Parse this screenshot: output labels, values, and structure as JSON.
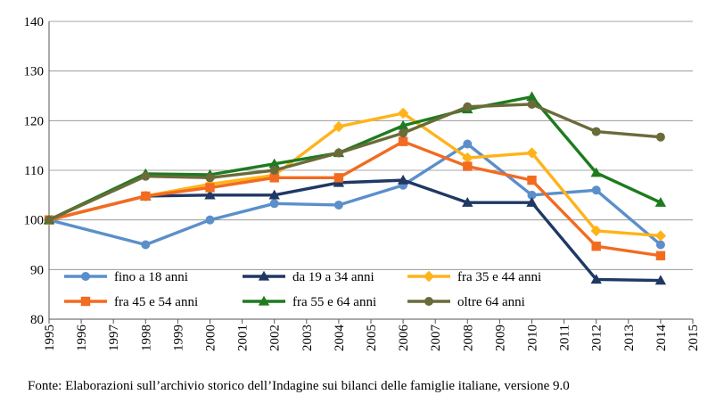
{
  "chart_data": {
    "type": "line",
    "title": "",
    "xlabel": "",
    "ylabel": "",
    "x": [
      1995,
      1998,
      2000,
      2002,
      2004,
      2006,
      2008,
      2010,
      2012,
      2014
    ],
    "xticks": [
      "1995",
      "1996",
      "1997",
      "1998",
      "1999",
      "2000",
      "2001",
      "2002",
      "2003",
      "2004",
      "2005",
      "2006",
      "2007",
      "2008",
      "2009",
      "2010",
      "2011",
      "2012",
      "2013",
      "2014",
      "2015"
    ],
    "xlim": [
      1995,
      2015
    ],
    "yticks": [
      80,
      90,
      100,
      110,
      120,
      130,
      140
    ],
    "ylim": [
      80,
      140
    ],
    "grid": "horizontal",
    "legend_position": "bottom-inside",
    "series": [
      {
        "name": "fino a 18 anni",
        "color": "#5B8FCB",
        "marker": "circle",
        "values": [
          100,
          95,
          100,
          103.3,
          103,
          107,
          115.3,
          105,
          106,
          95
        ]
      },
      {
        "name": "da 19 a 34 anni",
        "color": "#1F3864",
        "marker": "triangle",
        "values": [
          100,
          104.8,
          105,
          105,
          107.5,
          108,
          103.5,
          103.5,
          88,
          87.8
        ]
      },
      {
        "name": "fra 35 e 44 anni",
        "color": "#FFB31A",
        "marker": "diamond",
        "values": [
          100,
          104.8,
          107.2,
          109,
          118.8,
          121.5,
          112.5,
          113.5,
          97.8,
          96.8
        ]
      },
      {
        "name": "fra 45 e 54 anni",
        "color": "#F26B21",
        "marker": "square",
        "values": [
          100,
          104.8,
          106.5,
          108.5,
          108.5,
          115.8,
          110.8,
          108,
          94.7,
          92.8
        ]
      },
      {
        "name": "fra 55 e 64 anni",
        "color": "#1E7B1E",
        "marker": "triangle",
        "values": [
          100,
          109.3,
          109.1,
          111.3,
          113.5,
          119,
          122.3,
          124.8,
          109.5,
          103.5
        ]
      },
      {
        "name": "oltre 64 anni",
        "color": "#6B6B3A",
        "marker": "circle",
        "values": [
          100,
          108.8,
          108.5,
          110,
          113.5,
          117.5,
          122.8,
          123.3,
          117.8,
          116.7
        ]
      }
    ]
  },
  "source_note": "Fonte: Elaborazioni sull’archivio storico dell’Indagine sui bilanci delle famiglie italiane, versione 9.0"
}
